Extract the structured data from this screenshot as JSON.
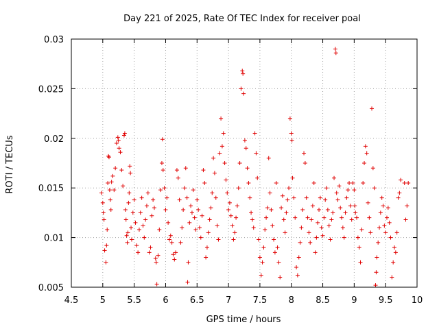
{
  "chart_data": {
    "type": "scatter",
    "title": "Day 221 of 2025, Rate Of TEC Index for receiver poal",
    "xlabel": "GPS time / hours",
    "ylabel": "ROTI / TECUs",
    "xlim": [
      4.5,
      10
    ],
    "ylim": [
      0.005,
      0.03
    ],
    "xticks": [
      4.5,
      5,
      5.5,
      6,
      6.5,
      7,
      7.5,
      8,
      8.5,
      9,
      9.5,
      10
    ],
    "xtick_labels": [
      "4.5",
      "5",
      "5.5",
      "6",
      "6.5",
      "7",
      "7.5",
      "8",
      "8.5",
      "9",
      "9.5",
      "10"
    ],
    "yticks": [
      0.005,
      0.01,
      0.015,
      0.02,
      0.025,
      0.03
    ],
    "ytick_labels": [
      "0.005",
      "0.01",
      "0.015",
      "0.02",
      "0.025",
      "0.03"
    ],
    "grid": true,
    "marker": "+",
    "color": "#e00000",
    "series": [
      {
        "name": "ROTI",
        "points": [
          [
            4.98,
            0.0145
          ],
          [
            5.0,
            0.0135
          ],
          [
            5.01,
            0.0125
          ],
          [
            5.02,
            0.0118
          ],
          [
            5.03,
            0.0087
          ],
          [
            5.05,
            0.0075
          ],
          [
            5.06,
            0.0092
          ],
          [
            5.07,
            0.0108
          ],
          [
            5.08,
            0.0155
          ],
          [
            5.09,
            0.0182
          ],
          [
            5.1,
            0.0181
          ],
          [
            5.11,
            0.0148
          ],
          [
            5.12,
            0.0138
          ],
          [
            5.13,
            0.0128
          ],
          [
            5.14,
            0.0156
          ],
          [
            5.16,
            0.0162
          ],
          [
            5.18,
            0.0148
          ],
          [
            5.2,
            0.017
          ],
          [
            5.22,
            0.0195
          ],
          [
            5.24,
            0.0201
          ],
          [
            5.25,
            0.0198
          ],
          [
            5.26,
            0.019
          ],
          [
            5.28,
            0.0186
          ],
          [
            5.3,
            0.0168
          ],
          [
            5.32,
            0.0152
          ],
          [
            5.34,
            0.0203
          ],
          [
            5.35,
            0.0205
          ],
          [
            5.36,
            0.0128
          ],
          [
            5.37,
            0.0118
          ],
          [
            5.38,
            0.0102
          ],
          [
            5.39,
            0.0095
          ],
          [
            5.4,
            0.0105
          ],
          [
            5.41,
            0.0135
          ],
          [
            5.42,
            0.0145
          ],
          [
            5.43,
            0.0172
          ],
          [
            5.44,
            0.0165
          ],
          [
            5.45,
            0.011
          ],
          [
            5.46,
            0.0098
          ],
          [
            5.48,
            0.0125
          ],
          [
            5.5,
            0.0138
          ],
          [
            5.52,
            0.0115
          ],
          [
            5.54,
            0.0092
          ],
          [
            5.56,
            0.0085
          ],
          [
            5.58,
            0.0108
          ],
          [
            5.6,
            0.0125
          ],
          [
            5.62,
            0.014
          ],
          [
            5.64,
            0.0112
          ],
          [
            5.66,
            0.01
          ],
          [
            5.68,
            0.0118
          ],
          [
            5.7,
            0.0132
          ],
          [
            5.72,
            0.0145
          ],
          [
            5.74,
            0.0085
          ],
          [
            5.76,
            0.009
          ],
          [
            5.78,
            0.0122
          ],
          [
            5.8,
            0.0138
          ],
          [
            5.82,
            0.013
          ],
          [
            5.84,
            0.0079
          ],
          [
            5.85,
            0.0075
          ],
          [
            5.86,
            0.0053
          ],
          [
            5.88,
            0.0082
          ],
          [
            5.9,
            0.0108
          ],
          [
            5.92,
            0.0148
          ],
          [
            5.94,
            0.0175
          ],
          [
            5.95,
            0.0199
          ],
          [
            5.96,
            0.0168
          ],
          [
            5.98,
            0.015
          ],
          [
            6.0,
            0.0128
          ],
          [
            6.02,
            0.014
          ],
          [
            6.04,
            0.0115
          ],
          [
            6.06,
            0.0098
          ],
          [
            6.08,
            0.0102
          ],
          [
            6.1,
            0.0095
          ],
          [
            6.12,
            0.0083
          ],
          [
            6.14,
            0.0078
          ],
          [
            6.16,
            0.0085
          ],
          [
            6.18,
            0.0168
          ],
          [
            6.2,
            0.016
          ],
          [
            6.22,
            0.0138
          ],
          [
            6.24,
            0.0095
          ],
          [
            6.26,
            0.011
          ],
          [
            6.28,
            0.0128
          ],
          [
            6.3,
            0.015
          ],
          [
            6.32,
            0.017
          ],
          [
            6.34,
            0.014
          ],
          [
            6.35,
            0.0055
          ],
          [
            6.36,
            0.0075
          ],
          [
            6.38,
            0.0115
          ],
          [
            6.4,
            0.0132
          ],
          [
            6.42,
            0.0125
          ],
          [
            6.44,
            0.0148
          ],
          [
            6.46,
            0.012
          ],
          [
            6.48,
            0.0108
          ],
          [
            6.5,
            0.0138
          ],
          [
            6.52,
            0.0128
          ],
          [
            6.54,
            0.011
          ],
          [
            6.56,
            0.01
          ],
          [
            6.58,
            0.0122
          ],
          [
            6.6,
            0.0168
          ],
          [
            6.62,
            0.0155
          ],
          [
            6.64,
            0.008
          ],
          [
            6.66,
            0.009
          ],
          [
            6.68,
            0.0105
          ],
          [
            6.7,
            0.0118
          ],
          [
            6.72,
            0.013
          ],
          [
            6.74,
            0.0145
          ],
          [
            6.76,
            0.018
          ],
          [
            6.78,
            0.0165
          ],
          [
            6.8,
            0.014
          ],
          [
            6.82,
            0.0112
          ],
          [
            6.84,
            0.0098
          ],
          [
            6.86,
            0.0185
          ],
          [
            6.88,
            0.022
          ],
          [
            6.9,
            0.0192
          ],
          [
            6.92,
            0.0205
          ],
          [
            6.94,
            0.0175
          ],
          [
            6.96,
            0.0158
          ],
          [
            6.98,
            0.0145
          ],
          [
            7.0,
            0.0128
          ],
          [
            7.02,
            0.0135
          ],
          [
            7.04,
            0.0122
          ],
          [
            7.06,
            0.0112
          ],
          [
            7.08,
            0.0098
          ],
          [
            7.1,
            0.0105
          ],
          [
            7.12,
            0.012
          ],
          [
            7.14,
            0.0132
          ],
          [
            7.16,
            0.015
          ],
          [
            7.18,
            0.0175
          ],
          [
            7.2,
            0.025
          ],
          [
            7.22,
            0.0268
          ],
          [
            7.23,
            0.0265
          ],
          [
            7.24,
            0.0245
          ],
          [
            7.26,
            0.0198
          ],
          [
            7.28,
            0.019
          ],
          [
            7.3,
            0.017
          ],
          [
            7.32,
            0.0155
          ],
          [
            7.34,
            0.014
          ],
          [
            7.36,
            0.0125
          ],
          [
            7.38,
            0.0118
          ],
          [
            7.4,
            0.011
          ],
          [
            7.42,
            0.0205
          ],
          [
            7.44,
            0.0185
          ],
          [
            7.46,
            0.016
          ],
          [
            7.48,
            0.0098
          ],
          [
            7.5,
            0.008
          ],
          [
            7.52,
            0.0062
          ],
          [
            7.54,
            0.0075
          ],
          [
            7.56,
            0.009
          ],
          [
            7.58,
            0.0108
          ],
          [
            7.6,
            0.012
          ],
          [
            7.62,
            0.013
          ],
          [
            7.64,
            0.018
          ],
          [
            7.66,
            0.0145
          ],
          [
            7.68,
            0.0128
          ],
          [
            7.7,
            0.0112
          ],
          [
            7.72,
            0.0098
          ],
          [
            7.74,
            0.0085
          ],
          [
            7.76,
            0.0155
          ],
          [
            7.78,
            0.009
          ],
          [
            7.8,
            0.0075
          ],
          [
            7.82,
            0.006
          ],
          [
            7.84,
            0.013
          ],
          [
            7.86,
            0.0142
          ],
          [
            7.88,
            0.0118
          ],
          [
            7.9,
            0.0105
          ],
          [
            7.92,
            0.0125
          ],
          [
            7.94,
            0.0138
          ],
          [
            7.96,
            0.015
          ],
          [
            7.98,
            0.022
          ],
          [
            8.0,
            0.0205
          ],
          [
            8.01,
            0.0198
          ],
          [
            8.02,
            0.016
          ],
          [
            8.04,
            0.014
          ],
          [
            8.06,
            0.012
          ],
          [
            8.08,
            0.007
          ],
          [
            8.1,
            0.0062
          ],
          [
            8.12,
            0.008
          ],
          [
            8.14,
            0.0095
          ],
          [
            8.16,
            0.011
          ],
          [
            8.18,
            0.0128
          ],
          [
            8.2,
            0.0185
          ],
          [
            8.22,
            0.0175
          ],
          [
            8.24,
            0.014
          ],
          [
            8.26,
            0.012
          ],
          [
            8.28,
            0.0105
          ],
          [
            8.3,
            0.0095
          ],
          [
            8.32,
            0.0118
          ],
          [
            8.34,
            0.0132
          ],
          [
            8.36,
            0.0155
          ],
          [
            8.38,
            0.0085
          ],
          [
            8.4,
            0.01
          ],
          [
            8.42,
            0.0115
          ],
          [
            8.44,
            0.0128
          ],
          [
            8.46,
            0.014
          ],
          [
            8.48,
            0.011
          ],
          [
            8.5,
            0.0102
          ],
          [
            8.52,
            0.012
          ],
          [
            8.54,
            0.0138
          ],
          [
            8.56,
            0.015
          ],
          [
            8.58,
            0.0128
          ],
          [
            8.6,
            0.0112
          ],
          [
            8.62,
            0.0098
          ],
          [
            8.64,
            0.0118
          ],
          [
            8.66,
            0.0125
          ],
          [
            8.68,
            0.016
          ],
          [
            8.7,
            0.029
          ],
          [
            8.71,
            0.0286
          ],
          [
            8.72,
            0.0145
          ],
          [
            8.74,
            0.0138
          ],
          [
            8.76,
            0.0152
          ],
          [
            8.78,
            0.013
          ],
          [
            8.8,
            0.012
          ],
          [
            8.82,
            0.011
          ],
          [
            8.84,
            0.01
          ],
          [
            8.86,
            0.0125
          ],
          [
            8.88,
            0.014
          ],
          [
            8.9,
            0.0148
          ],
          [
            8.92,
            0.0155
          ],
          [
            8.94,
            0.0132
          ],
          [
            8.96,
            0.0118
          ],
          [
            8.98,
            0.0155
          ],
          [
            9.0,
            0.0148
          ],
          [
            9.01,
            0.0132
          ],
          [
            9.02,
            0.0125
          ],
          [
            9.04,
            0.012
          ],
          [
            9.06,
            0.01
          ],
          [
            9.08,
            0.009
          ],
          [
            9.1,
            0.0075
          ],
          [
            9.12,
            0.0108
          ],
          [
            9.14,
            0.0155
          ],
          [
            9.16,
            0.0175
          ],
          [
            9.18,
            0.0192
          ],
          [
            9.2,
            0.0185
          ],
          [
            9.22,
            0.0135
          ],
          [
            9.24,
            0.012
          ],
          [
            9.26,
            0.0105
          ],
          [
            9.28,
            0.023
          ],
          [
            9.3,
            0.017
          ],
          [
            9.32,
            0.015
          ],
          [
            9.34,
            0.0052
          ],
          [
            9.35,
            0.0065
          ],
          [
            9.36,
            0.008
          ],
          [
            9.38,
            0.0095
          ],
          [
            9.4,
            0.011
          ],
          [
            9.42,
            0.0125
          ],
          [
            9.44,
            0.014
          ],
          [
            9.46,
            0.0132
          ],
          [
            9.48,
            0.0112
          ],
          [
            9.5,
            0.0105
          ],
          [
            9.52,
            0.012
          ],
          [
            9.54,
            0.013
          ],
          [
            9.56,
            0.0115
          ],
          [
            9.58,
            0.01
          ],
          [
            9.6,
            0.006
          ],
          [
            9.62,
            0.0075
          ],
          [
            9.64,
            0.009
          ],
          [
            9.66,
            0.0085
          ],
          [
            9.68,
            0.0105
          ],
          [
            9.7,
            0.014
          ],
          [
            9.72,
            0.0145
          ],
          [
            9.74,
            0.0158
          ],
          [
            9.8,
            0.0155
          ],
          [
            9.82,
            0.0118
          ],
          [
            9.84,
            0.0132
          ],
          [
            9.86,
            0.0155
          ]
        ]
      }
    ]
  }
}
